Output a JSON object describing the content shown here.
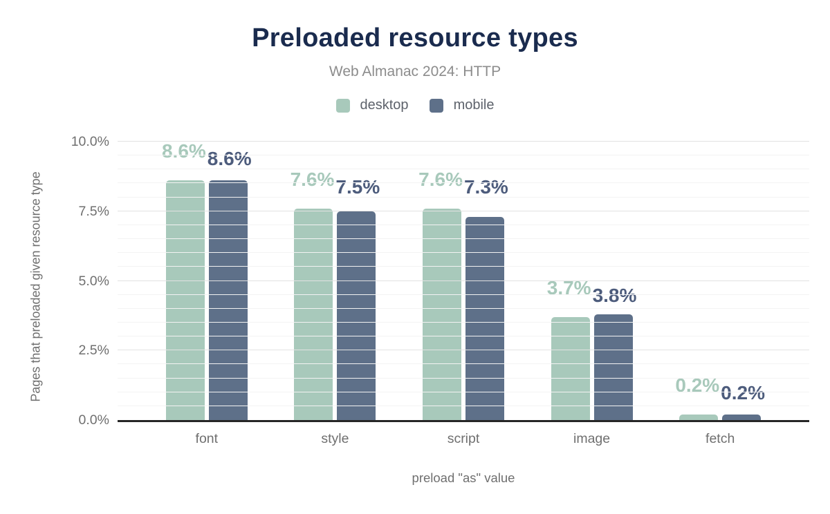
{
  "header": {
    "title": "Preloaded resource types",
    "subtitle": "Web Almanac 2024: HTTP"
  },
  "legend": [
    {
      "label": "desktop",
      "color": "#a8c9bb"
    },
    {
      "label": "mobile",
      "color": "#5e7089"
    }
  ],
  "chart_data": {
    "type": "bar",
    "title": "Preloaded resource types",
    "subtitle": "Web Almanac 2024: HTTP",
    "categories": [
      "font",
      "style",
      "script",
      "image",
      "fetch"
    ],
    "series": [
      {
        "name": "desktop",
        "color": "#a8c9bb",
        "label_color": "#a8c9bb",
        "values": [
          8.6,
          7.6,
          7.6,
          3.7,
          0.2
        ],
        "labels": [
          "8.6%",
          "7.6%",
          "7.6%",
          "3.7%",
          "0.2%"
        ]
      },
      {
        "name": "mobile",
        "color": "#5e7089",
        "label_color": "#4d5c7c",
        "values": [
          8.6,
          7.5,
          7.3,
          3.8,
          0.2
        ],
        "labels": [
          "8.6%",
          "7.5%",
          "7.3%",
          "3.8%",
          "0.2%"
        ]
      }
    ],
    "xlabel": "preload \"as\" value",
    "ylabel": "Pages that preloaded given resource type",
    "ylim": [
      0,
      10
    ],
    "yticks": [
      {
        "label": "0.0%",
        "value": 0
      },
      {
        "label": "2.5%",
        "value": 2.5
      },
      {
        "label": "5.0%",
        "value": 5
      },
      {
        "label": "7.5%",
        "value": 7.5
      },
      {
        "label": "10.0%",
        "value": 10
      }
    ],
    "grid": {
      "major_step": 2.5,
      "minor_step": 0.5,
      "legend_position": "top"
    },
    "baseline_color": "#262626",
    "title_color": "#1a2b4e"
  }
}
